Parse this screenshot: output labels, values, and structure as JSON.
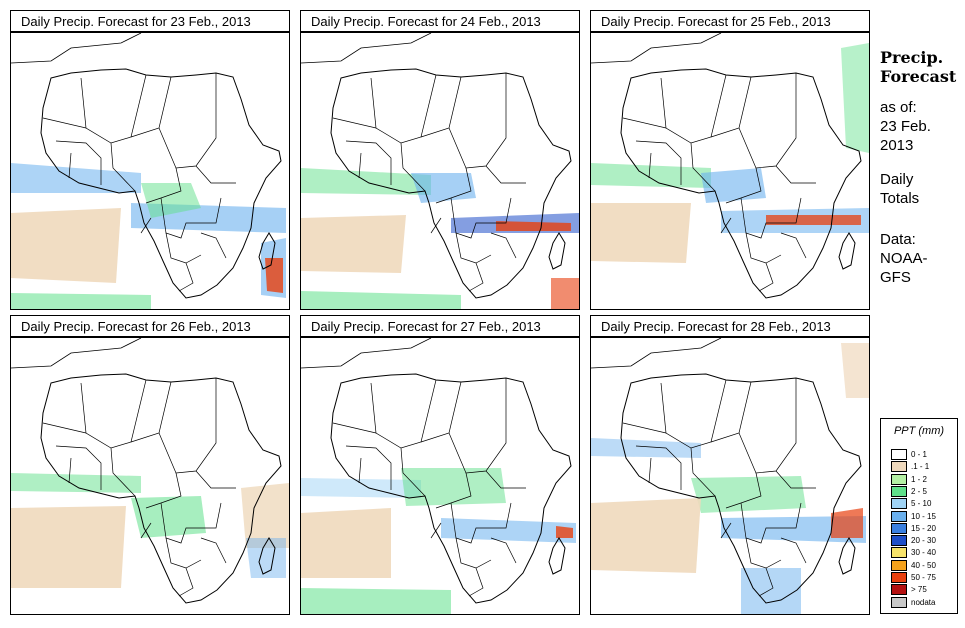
{
  "panels": [
    {
      "title": "Daily Precip. Forecast for  23 Feb., 2013"
    },
    {
      "title": "Daily Precip. Forecast for  24 Feb., 2013"
    },
    {
      "title": "Daily Precip. Forecast for  25 Feb., 2013"
    },
    {
      "title": "Daily Precip. Forecast for  26 Feb., 2013"
    },
    {
      "title": "Daily Precip. Forecast for  27 Feb., 2013"
    },
    {
      "title": "Daily Precip. Forecast for  28 Feb., 2013"
    }
  ],
  "side": {
    "title_line1": "Precip.",
    "title_line2": "Forecast",
    "asof_line1": "as of:",
    "asof_line2": "23 Feb.",
    "asof_line3": "2013",
    "totals_line1": "Daily",
    "totals_line2": "Totals",
    "data_line1": "Data:",
    "data_line2": "NOAA-",
    "data_line3": "GFS"
  },
  "legend": {
    "title": "PPT (mm)",
    "items": [
      {
        "label": "0 - 1",
        "color": "#ffffff"
      },
      {
        "label": ".1 - 1",
        "color": "#efd9bd"
      },
      {
        "label": "1 - 2",
        "color": "#b4f0a4"
      },
      {
        "label": "2 - 5",
        "color": "#5fe08a"
      },
      {
        "label": "5 - 10",
        "color": "#9fd3f5"
      },
      {
        "label": "10 - 15",
        "color": "#6ab0ee"
      },
      {
        "label": "15 - 20",
        "color": "#3b80e0"
      },
      {
        "label": "20 - 30",
        "color": "#1f4fc8"
      },
      {
        "label": "30 - 40",
        "color": "#f7e36a"
      },
      {
        "label": "40 - 50",
        "color": "#f5a21c"
      },
      {
        "label": "50 - 75",
        "color": "#e8400f"
      },
      {
        "label": "> 75",
        "color": "#b31010"
      },
      {
        "label": "nodata",
        "color": "#c8c8c8"
      }
    ]
  }
}
